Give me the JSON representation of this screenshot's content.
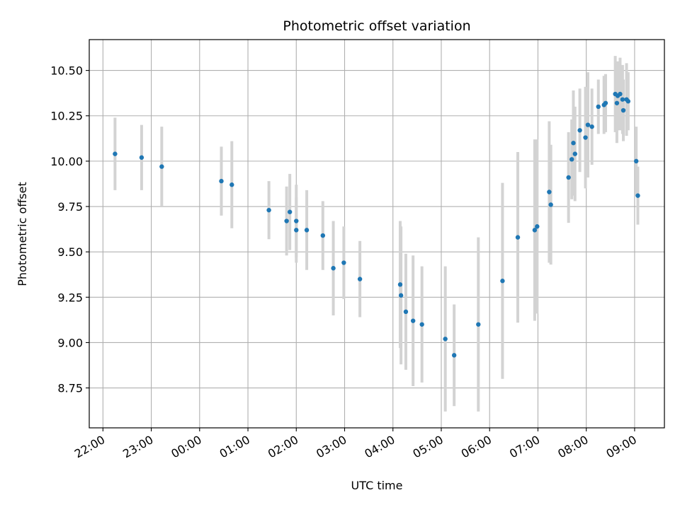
{
  "chart_data": {
    "type": "scatter",
    "title": "Photometric offset variation",
    "xlabel": "UTC time",
    "ylabel": "Photometric offset",
    "xlim": [
      "21:43",
      "09:37"
    ],
    "ylim": [
      8.53,
      10.67
    ],
    "x_ticks": [
      "22:00",
      "23:00",
      "00:00",
      "01:00",
      "02:00",
      "03:00",
      "04:00",
      "05:00",
      "06:00",
      "07:00",
      "08:00",
      "09:00"
    ],
    "y_ticks": [
      "8.75",
      "9.00",
      "9.25",
      "9.50",
      "9.75",
      "10.00",
      "10.25",
      "10.50"
    ],
    "grid": true,
    "errorbar_color": "#d3d3d3",
    "point_color": "#1f77b4",
    "series": [
      {
        "x": [
          "22:15",
          "22:48",
          "23:13",
          "00:27",
          "00:40",
          "01:26",
          "01:48",
          "01:52",
          "02:00",
          "02:00",
          "02:13",
          "02:33",
          "02:46",
          "02:59",
          "03:19",
          "04:09",
          "04:10",
          "04:16",
          "04:25",
          "04:36",
          "05:05",
          "05:16",
          "05:46",
          "06:16",
          "06:35",
          "06:56",
          "06:59",
          "07:14",
          "07:16",
          "07:38",
          "07:42",
          "07:44",
          "07:46",
          "07:52",
          "07:59",
          "08:02",
          "08:07",
          "08:15",
          "08:22",
          "08:24",
          "08:36",
          "08:38",
          "08:39",
          "08:42",
          "08:45",
          "08:46",
          "08:50",
          "08:52",
          "09:02",
          "09:04"
        ],
        "y": [
          10.04,
          10.02,
          9.97,
          9.89,
          9.87,
          9.73,
          9.67,
          9.72,
          9.67,
          9.62,
          9.62,
          9.59,
          9.41,
          9.44,
          9.35,
          9.32,
          9.26,
          9.17,
          9.12,
          9.1,
          9.02,
          8.93,
          9.1,
          9.34,
          9.58,
          9.62,
          9.64,
          9.83,
          9.76,
          9.91,
          10.01,
          10.1,
          10.04,
          10.17,
          10.13,
          10.2,
          10.19,
          10.3,
          10.31,
          10.32,
          10.37,
          10.32,
          10.36,
          10.37,
          10.34,
          10.28,
          10.34,
          10.33,
          10.0,
          9.81
        ],
        "err": [
          0.2,
          0.18,
          0.22,
          0.19,
          0.24,
          0.16,
          0.19,
          0.21,
          0.2,
          0.18,
          0.22,
          0.19,
          0.26,
          0.2,
          0.21,
          0.35,
          0.38,
          0.32,
          0.36,
          0.32,
          0.4,
          0.28,
          0.48,
          0.54,
          0.47,
          0.5,
          0.48,
          0.39,
          0.33,
          0.25,
          0.22,
          0.29,
          0.26,
          0.23,
          0.28,
          0.29,
          0.21,
          0.15,
          0.16,
          0.16,
          0.21,
          0.22,
          0.19,
          0.2,
          0.19,
          0.17,
          0.2,
          0.16,
          0.19,
          0.16
        ]
      }
    ]
  }
}
